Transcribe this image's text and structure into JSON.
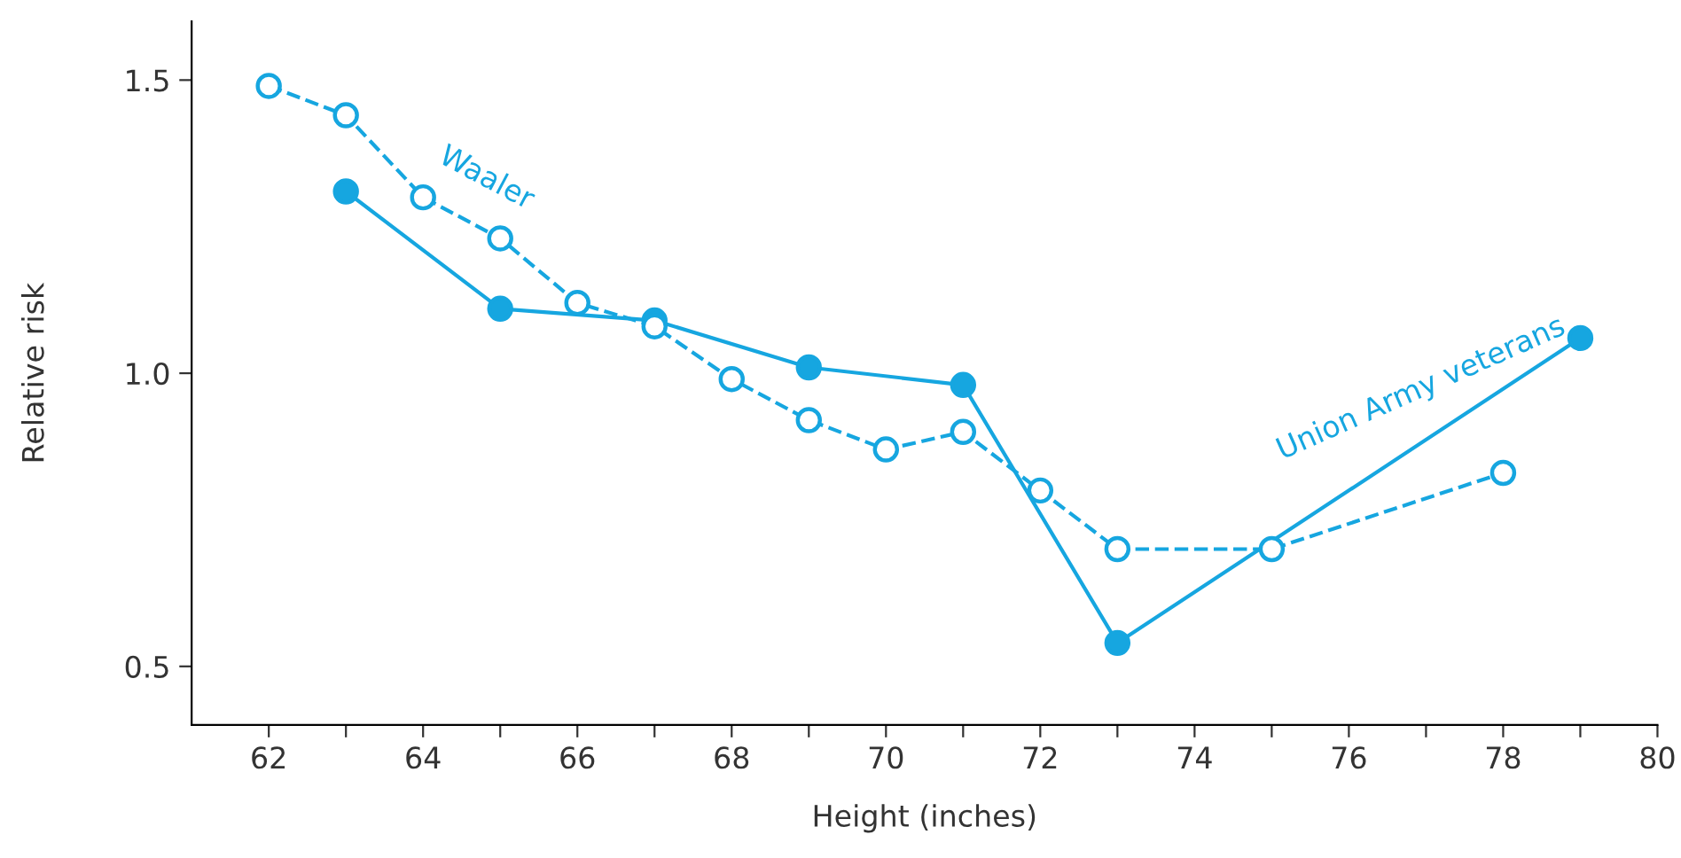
{
  "chart_data": {
    "type": "line",
    "xlabel": "Height (inches)",
    "ylabel": "Relative risk",
    "xlim": [
      61,
      80
    ],
    "ylim": [
      0.4,
      1.6
    ],
    "xticks": [
      62,
      {
        "value": 63,
        "label": null
      },
      64,
      {
        "value": 65,
        "label": null
      },
      66,
      {
        "value": 67,
        "label": null
      },
      68,
      {
        "value": 69,
        "label": null
      },
      70,
      {
        "value": 71,
        "label": null
      },
      72,
      {
        "value": 73,
        "label": null
      },
      74,
      {
        "value": 75,
        "label": null
      },
      76,
      {
        "value": 77,
        "label": null
      },
      78,
      {
        "value": 79,
        "label": null
      },
      80
    ],
    "yticks": [
      {
        "value": 0.5,
        "label": "0.5"
      },
      {
        "value": 1.0,
        "label": "1.0"
      },
      {
        "value": 1.5,
        "label": "1.5"
      }
    ],
    "grid": false,
    "legend": false,
    "marker": "circle",
    "series": [
      {
        "name": "Waaler",
        "color": "#16a6e0",
        "line_style": "dashed",
        "x": [
          62,
          63,
          64,
          65,
          66,
          67,
          68,
          69,
          70,
          71,
          72,
          73,
          75,
          78
        ],
        "values": [
          1.49,
          1.44,
          1.3,
          1.23,
          1.12,
          1.08,
          0.99,
          0.92,
          0.87,
          0.9,
          0.8,
          0.7,
          0.7,
          0.83
        ]
      },
      {
        "name": "Union Army veterans",
        "color": "#16a6e0",
        "line_style": "solid",
        "x": [
          63,
          65,
          67,
          69,
          71,
          73,
          79
        ],
        "values": [
          1.31,
          1.11,
          1.09,
          1.01,
          0.98,
          0.54,
          1.06
        ]
      }
    ]
  }
}
